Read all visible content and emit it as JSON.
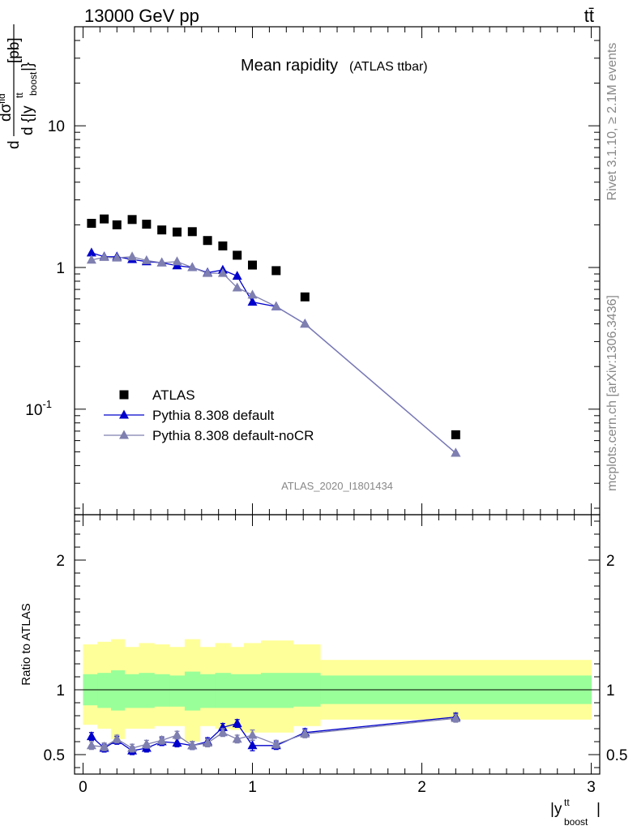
{
  "header": {
    "energy": "13000 GeV pp",
    "process": "tt̄",
    "rivet": "Rivet 3.1.10, ≥ 2.1M events",
    "mcplots": "mcplots.cern.ch [arXiv:1306.3436]",
    "analysis": "ATLAS_2020_I1801434"
  },
  "chart_data": [
    {
      "type": "scatter",
      "panel": "main",
      "title": "Mean rapidity",
      "subtitle": "(ATLAS ttbar)",
      "ylabel": "d dσ^{fid} / d {|y^{tt}_{boost}|} [pb]",
      "yscale": "log",
      "ylim": [
        0.018,
        50
      ],
      "xlim": [
        -0.05,
        3.05
      ],
      "yticks": [
        {
          "v": 0.1,
          "label": "10^-1"
        },
        {
          "v": 1,
          "label": "1"
        },
        {
          "v": 10,
          "label": "10"
        }
      ],
      "legend": {
        "placement": "bottom-left",
        "entries": [
          "ATLAS",
          "Pythia 8.308 default",
          "Pythia 8.308 default-noCR"
        ]
      },
      "x": [
        0.05,
        0.125,
        0.2,
        0.29,
        0.375,
        0.465,
        0.555,
        0.645,
        0.735,
        0.825,
        0.91,
        1.0,
        1.14,
        1.31,
        2.2
      ],
      "series": [
        {
          "name": "ATLAS",
          "marker": "square",
          "color": "#000000",
          "values": [
            2.05,
            2.2,
            2.0,
            2.18,
            2.02,
            1.84,
            1.78,
            1.79,
            1.55,
            1.42,
            1.22,
            1.04,
            0.95,
            0.62,
            0.066
          ]
        },
        {
          "name": "Pythia 8.308 default",
          "marker": "triangle",
          "color": "#0000cc",
          "values": [
            1.27,
            1.19,
            1.19,
            1.14,
            1.1,
            1.08,
            1.03,
            1.0,
            0.92,
            0.96,
            0.87,
            0.57,
            0.53,
            0.4,
            0.049
          ]
        },
        {
          "name": "Pythia 8.308 default-noCR",
          "marker": "triangle",
          "color": "#7f7fb0",
          "values": [
            1.13,
            1.18,
            1.17,
            1.19,
            1.12,
            1.08,
            1.1,
            1.0,
            0.91,
            0.91,
            0.72,
            0.64,
            0.53,
            0.4,
            0.049
          ]
        }
      ]
    },
    {
      "type": "line",
      "panel": "ratio",
      "ylabel": "Ratio to ATLAS",
      "xlabel": "|y^{tt}_{boost}|",
      "ylim": [
        0.35,
        2.35
      ],
      "xlim": [
        -0.05,
        3.05
      ],
      "yticks": [
        {
          "v": 0.5,
          "label": "0.5"
        },
        {
          "v": 1,
          "label": "1"
        },
        {
          "v": 2,
          "label": "2"
        }
      ],
      "xticks": [
        {
          "v": 0,
          "label": "0"
        },
        {
          "v": 1,
          "label": "1"
        },
        {
          "v": 2,
          "label": "2"
        },
        {
          "v": 3,
          "label": "3"
        }
      ],
      "bands": {
        "edges": [
          0.0,
          0.085,
          0.165,
          0.245,
          0.33,
          0.42,
          0.51,
          0.6,
          0.69,
          0.78,
          0.87,
          0.95,
          1.05,
          1.24,
          1.4,
          3.0
        ],
        "yellow_color": "#ffff99",
        "green_color": "#99ff99",
        "yellow": [
          [
            0.73,
            1.35
          ],
          [
            0.7,
            1.37
          ],
          [
            0.62,
            1.39
          ],
          [
            0.7,
            1.33
          ],
          [
            0.7,
            1.36
          ],
          [
            0.72,
            1.35
          ],
          [
            0.72,
            1.33
          ],
          [
            0.6,
            1.39
          ],
          [
            0.72,
            1.33
          ],
          [
            0.7,
            1.36
          ],
          [
            0.69,
            1.33
          ],
          [
            0.67,
            1.36
          ],
          [
            0.67,
            1.38
          ],
          [
            0.72,
            1.35
          ],
          [
            0.77,
            1.23
          ]
        ],
        "green": [
          [
            0.88,
            1.12
          ],
          [
            0.86,
            1.13
          ],
          [
            0.84,
            1.15
          ],
          [
            0.86,
            1.12
          ],
          [
            0.86,
            1.13
          ],
          [
            0.87,
            1.12
          ],
          [
            0.87,
            1.11
          ],
          [
            0.84,
            1.14
          ],
          [
            0.86,
            1.12
          ],
          [
            0.86,
            1.13
          ],
          [
            0.86,
            1.12
          ],
          [
            0.86,
            1.12
          ],
          [
            0.86,
            1.13
          ],
          [
            0.87,
            1.13
          ],
          [
            0.89,
            1.11
          ]
        ]
      },
      "x": [
        0.05,
        0.125,
        0.2,
        0.29,
        0.375,
        0.465,
        0.555,
        0.645,
        0.735,
        0.825,
        0.91,
        1.0,
        1.14,
        1.31,
        2.2
      ],
      "series": [
        {
          "name": "Pythia 8.308 default",
          "color": "#0000cc",
          "values": [
            0.64,
            0.55,
            0.61,
            0.53,
            0.55,
            0.6,
            0.59,
            0.57,
            0.6,
            0.71,
            0.74,
            0.57,
            0.57,
            0.67,
            0.79
          ],
          "errors": [
            0.03,
            0.03,
            0.03,
            0.03,
            0.03,
            0.03,
            0.03,
            0.03,
            0.03,
            0.03,
            0.03,
            0.04,
            0.03,
            0.03,
            0.03
          ]
        },
        {
          "name": "Pythia 8.308 default-noCR",
          "color": "#7f7fb0",
          "values": [
            0.57,
            0.56,
            0.62,
            0.55,
            0.58,
            0.61,
            0.65,
            0.57,
            0.59,
            0.67,
            0.62,
            0.65,
            0.58,
            0.66,
            0.78
          ],
          "errors": [
            0.03,
            0.03,
            0.03,
            0.03,
            0.03,
            0.03,
            0.03,
            0.03,
            0.03,
            0.03,
            0.03,
            0.04,
            0.03,
            0.03,
            0.03
          ]
        }
      ]
    }
  ]
}
